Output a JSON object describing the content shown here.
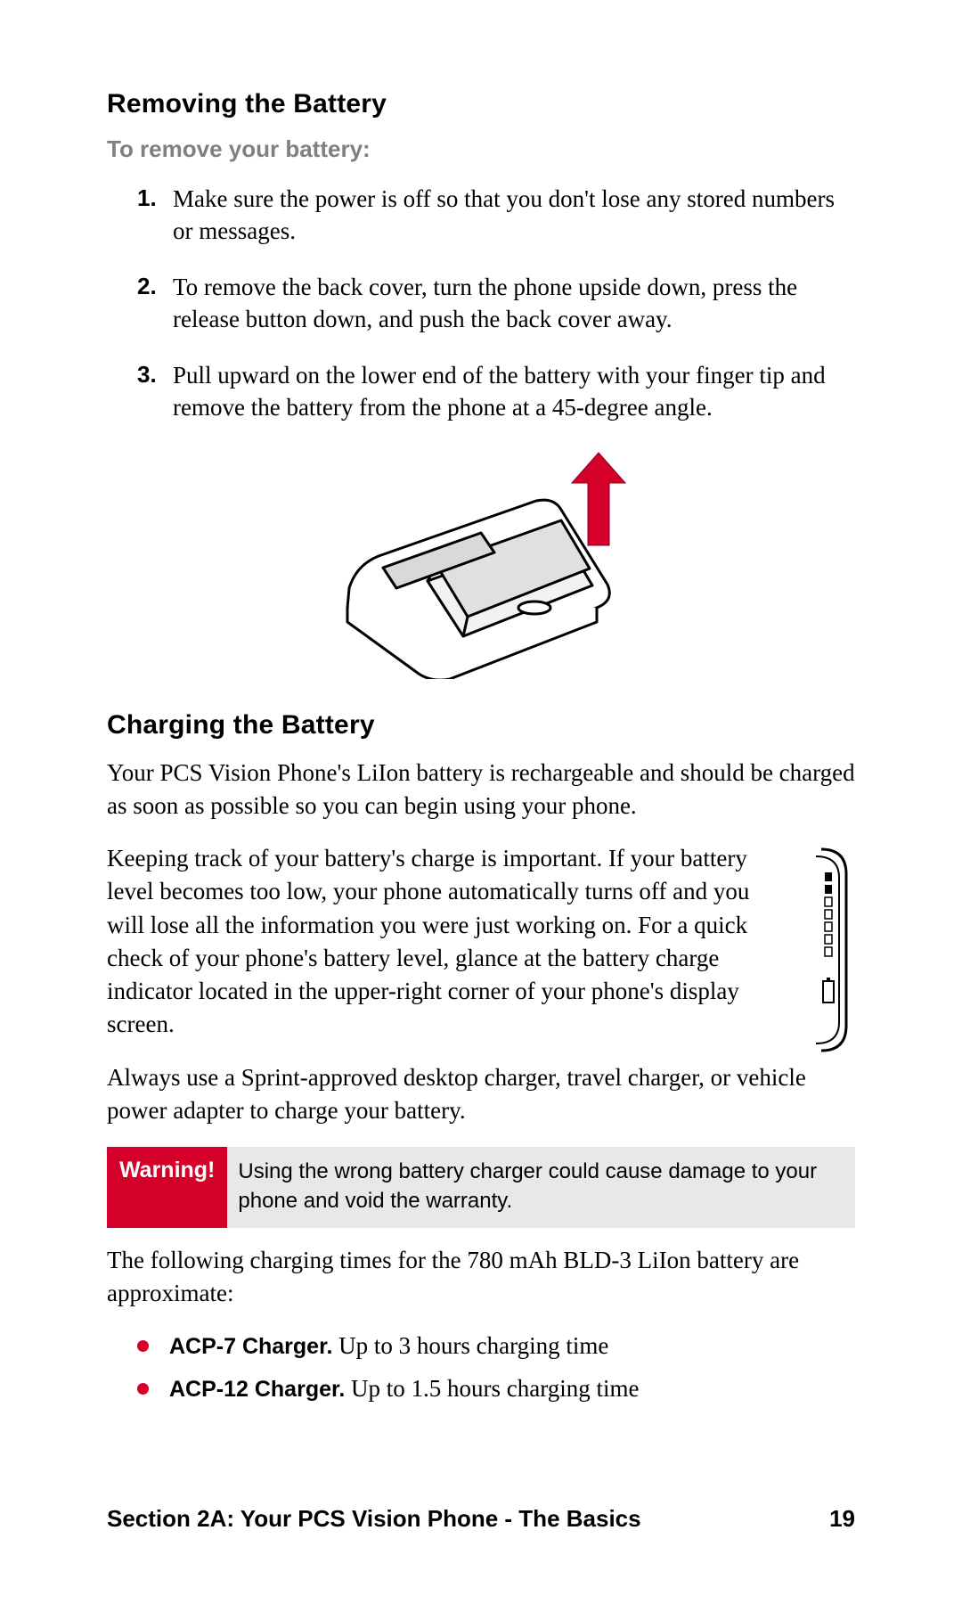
{
  "colors": {
    "accent_red": "#d4002a",
    "grey_text": "#808080",
    "callout_bg": "#e8e8e8",
    "body_text": "#000000",
    "bullet_color": "#d4002a"
  },
  "typography": {
    "heading_family": "Helvetica Neue, Arial, sans-serif",
    "body_family": "Palatino, Georgia, serif",
    "heading_size_pt": 15,
    "subheading_size_pt": 13,
    "body_size_pt": 13,
    "callout_label_size_pt": 12,
    "callout_text_size_pt": 11
  },
  "section1": {
    "heading": "Removing the Battery",
    "subheading": "To remove your battery:",
    "steps": [
      "Make sure the power is off so that you don't lose any stored numbers or messages.",
      "To remove the back cover, turn the phone upside down, press the release button down, and push the back cover away.",
      "Pull upward on the lower end of the battery with your finger tip and remove the battery from the phone at a 45-degree angle."
    ],
    "figure_alt": "phone-battery-removal-illustration"
  },
  "section2": {
    "heading": "Charging the Battery",
    "para1": "Your PCS Vision Phone's LiIon battery is rechargeable and should be charged as soon as possible so you can begin using your phone.",
    "para2": "Keeping track of your battery's charge is important. If your battery level becomes too low, your phone automatically turns off and you will lose all the information you were just working on. For a quick check of your phone's battery level, glance at the battery charge indicator located in the upper-right corner of your phone's display screen.",
    "para3": "Always use a Sprint-approved desktop charger, travel charger, or vehicle power adapter to charge your battery.",
    "indicator_alt": "battery-charge-indicator-icon"
  },
  "warning": {
    "label": "Warning!",
    "text": "Using the wrong battery charger could cause damage to your phone and void the warranty."
  },
  "charging_times": {
    "intro": "The following charging times for the 780 mAh BLD-3 LiIon battery are approximate:",
    "items": [
      {
        "name": "ACP-7 Charger.",
        "desc": " Up to 3 hours charging time"
      },
      {
        "name": "ACP-12 Charger.",
        "desc": " Up to 1.5 hours charging time"
      }
    ]
  },
  "footer": {
    "section_label": "Section 2A: Your PCS Vision Phone - The Basics",
    "page_number": "19"
  }
}
